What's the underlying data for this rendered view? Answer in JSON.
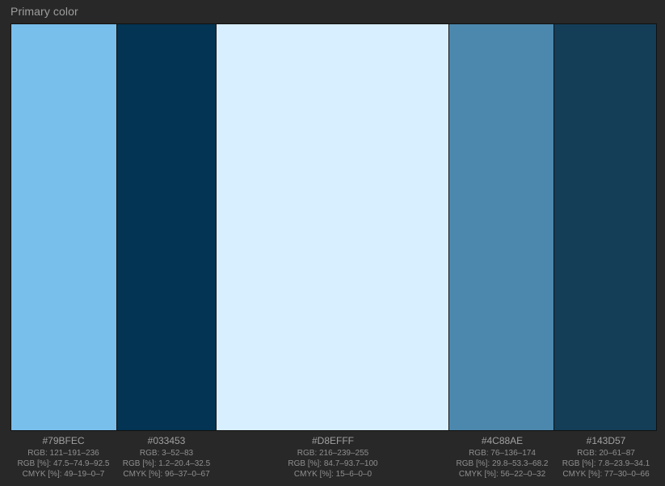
{
  "panel": {
    "title": "Primary color"
  },
  "colors": [
    {
      "hex": "#79BFEC",
      "rgb": "RGB: 121–191–236",
      "rgb_pct": "RGB [%]: 47.5–74.9–92.5",
      "cmyk": "CMYK [%]: 49–19–0–7"
    },
    {
      "hex": "#033453",
      "rgb": "RGB: 3–52–83",
      "rgb_pct": "RGB [%]: 1.2–20.4–32.5",
      "cmyk": "CMYK [%]: 96–37–0–67"
    },
    {
      "hex": "#D8EFFF",
      "rgb": "RGB: 216–239–255",
      "rgb_pct": "RGB [%]: 84.7–93.7–100",
      "cmyk": "CMYK [%]: 15–6–0–0"
    },
    {
      "hex": "#4C88AE",
      "rgb": "RGB: 76–136–174",
      "rgb_pct": "RGB [%]: 29.8–53.3–68.2",
      "cmyk": "CMYK [%]: 56–22–0–32"
    },
    {
      "hex": "#143D57",
      "rgb": "RGB: 20–61–87",
      "rgb_pct": "RGB [%]: 7.8–23.9–34.1",
      "cmyk": "CMYK [%]: 77–30–0–66"
    }
  ]
}
